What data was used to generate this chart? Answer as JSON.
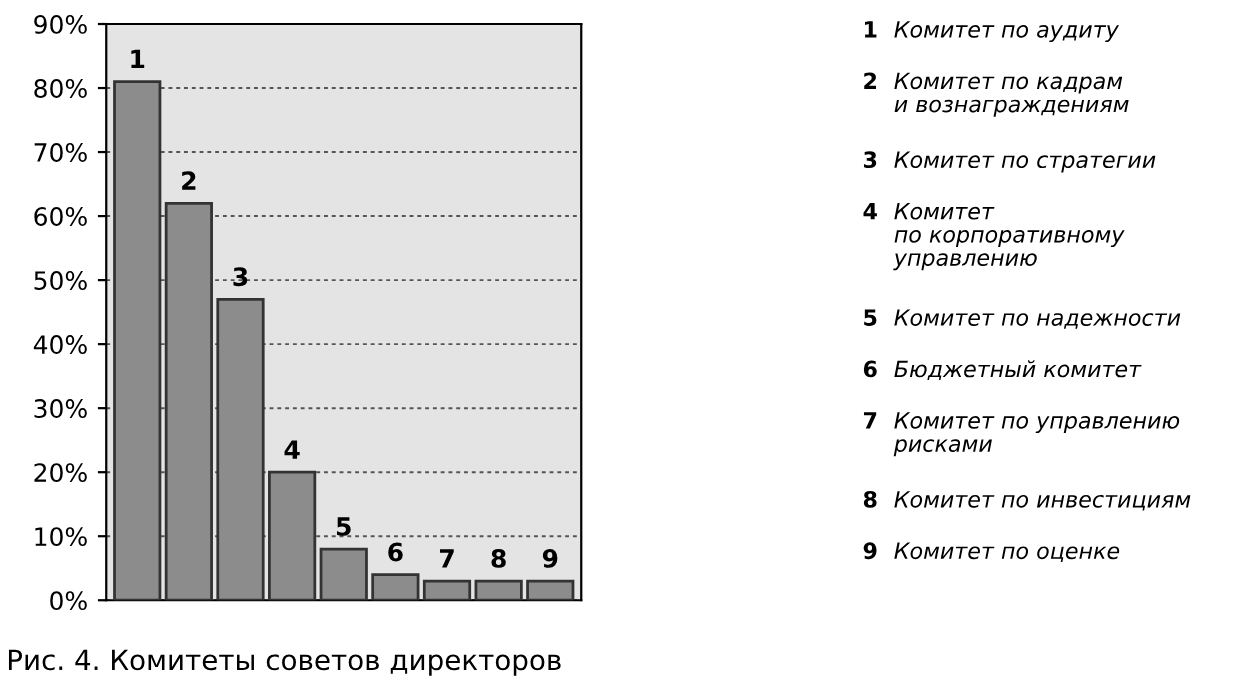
{
  "chart_data": {
    "type": "bar",
    "title": "Рис. 4. Комитеты советов директоров",
    "categories": [
      "1",
      "2",
      "3",
      "4",
      "5",
      "6",
      "7",
      "8",
      "9"
    ],
    "values": [
      81,
      62,
      47,
      20,
      8,
      4,
      3,
      3,
      3
    ],
    "color": "#8c8c8c",
    "ylim": [
      0,
      90
    ],
    "yticks": [
      {
        "value": 0,
        "label": "0%"
      },
      {
        "value": 10,
        "label": "10%"
      },
      {
        "value": 20,
        "label": "20%"
      },
      {
        "value": 30,
        "label": "30%"
      },
      {
        "value": 40,
        "label": "40%"
      },
      {
        "value": 50,
        "label": "50%"
      },
      {
        "value": 60,
        "label": "60%"
      },
      {
        "value": 70,
        "label": "70%"
      },
      {
        "value": 80,
        "label": "80%"
      },
      {
        "value": 90,
        "label": "90%"
      }
    ],
    "grid": "y",
    "annotations": [
      "1 Комитет по аудиту",
      "2 Комитет по кадрам\nи вознаграждениям",
      "3 Комитет по стратегии",
      "4 Комитет\nпо корпоративному\nуправлению",
      "5 Комитет по надежности",
      "6 Бюджетный комитет",
      "7 Комитет по управлению\nрисками",
      "8 Комитет по инвестициям",
      "9 Комитет по оценке"
    ]
  }
}
